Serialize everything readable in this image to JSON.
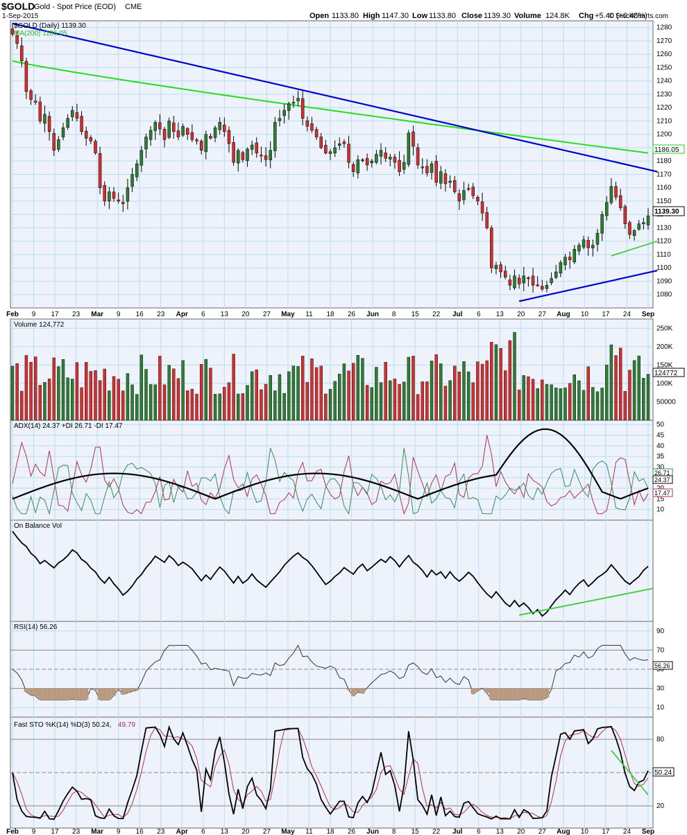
{
  "header": {
    "symbol": "$GOLD",
    "name": "Gold - Spot Price (EOD)",
    "exchange": "CME",
    "date": "1-Sep-2015",
    "open_label": "Open",
    "open": "1133.80",
    "high_label": "High",
    "high": "1147.30",
    "low_label": "Low",
    "low": "1133.80",
    "close_label": "Close",
    "close": "1139.30",
    "volume_label": "Volume",
    "volume": "124.8K",
    "chg_label": "Chg",
    "chg": "+5.40 (+0.48%)",
    "watermark": "© StockCharts.com"
  },
  "colors": {
    "up": "#2e7d32",
    "down": "#d32f2f",
    "ma200": "#22dd22",
    "trendline": "#0000cc",
    "support_green": "#44cc44",
    "plus_di": "#3a8a5a",
    "minus_di": "#b03050",
    "panel_bg": "#eef2fa",
    "grid": "#b8dcf0"
  },
  "chart_data": [
    {
      "type": "candlestick",
      "panel": "price",
      "title": "$GOLD (Daily) 1139.30",
      "legend": [
        {
          "name": "MA(200) 1186.05",
          "color": "#22dd22"
        }
      ],
      "ylim": [
        1070,
        1285
      ],
      "yticks": [
        1080,
        1090,
        1100,
        1110,
        1120,
        1130,
        1140,
        1150,
        1160,
        1170,
        1180,
        1190,
        1200,
        1210,
        1220,
        1230,
        1240,
        1250,
        1260,
        1270,
        1280
      ],
      "last_price_label": "1139.30",
      "ma_label": "1186.05",
      "x_labels": [
        "Feb",
        "9",
        "17",
        "23",
        "Mar",
        "9",
        "16",
        "23",
        "Apr",
        "6",
        "13",
        "20",
        "27",
        "May",
        "11",
        "18",
        "26",
        "Jun",
        "8",
        "15",
        "22",
        "Jul",
        "6",
        "13",
        "20",
        "27",
        "Aug",
        "10",
        "17",
        "24",
        "Sep"
      ],
      "bold_labels": [
        "Feb",
        "Mar",
        "Apr",
        "May",
        "Jun",
        "Jul",
        "Aug",
        "Sep"
      ],
      "close_series": [
        1275,
        1268,
        1255,
        1232,
        1226,
        1224,
        1210,
        1215,
        1202,
        1188,
        1196,
        1205,
        1212,
        1218,
        1212,
        1202,
        1197,
        1195,
        1186,
        1160,
        1150,
        1157,
        1152,
        1150,
        1148,
        1160,
        1170,
        1178,
        1188,
        1198,
        1203,
        1209,
        1204,
        1196,
        1210,
        1202,
        1198,
        1206,
        1200,
        1196,
        1195,
        1188,
        1200,
        1197,
        1205,
        1209,
        1202,
        1193,
        1179,
        1188,
        1181,
        1189,
        1192,
        1186,
        1184,
        1181,
        1188,
        1209,
        1212,
        1218,
        1223,
        1224,
        1227,
        1212,
        1206,
        1203,
        1198,
        1190,
        1186,
        1187,
        1190,
        1193,
        1193,
        1179,
        1172,
        1181,
        1181,
        1177,
        1180,
        1185,
        1188,
        1182,
        1183,
        1179,
        1172,
        1179,
        1201,
        1191,
        1177,
        1175,
        1171,
        1178,
        1164,
        1172,
        1163,
        1165,
        1157,
        1150,
        1158,
        1159,
        1154,
        1150,
        1141,
        1130,
        1100,
        1102,
        1097,
        1093,
        1087,
        1094,
        1088,
        1094,
        1092,
        1087,
        1087,
        1084,
        1087,
        1092,
        1097,
        1104,
        1108,
        1106,
        1114,
        1117,
        1121,
        1115,
        1117,
        1126,
        1140,
        1149,
        1161,
        1153,
        1145,
        1133,
        1125,
        1128,
        1133,
        1134,
        1139
      ],
      "trendlines": [
        {
          "name": "upper-resistance",
          "color": "#0000cc",
          "points": [
            [
              0,
              1283
            ],
            [
              140,
              1172
            ]
          ]
        },
        {
          "name": "lower-support",
          "color": "#0000cc",
          "points": [
            [
              110,
              1075
            ],
            [
              140,
              1098
            ]
          ]
        },
        {
          "name": "green-support",
          "color": "#44cc44",
          "points": [
            [
              130,
              1109
            ],
            [
              140,
              1120
            ]
          ]
        }
      ]
    },
    {
      "type": "bar",
      "panel": "volume",
      "title": "Volume 124,772",
      "ylim": [
        0,
        275000
      ],
      "yticks": [
        50000,
        100000,
        150000,
        200000,
        250000
      ],
      "ytick_labels": [
        "50000",
        "100K",
        "150K",
        "200K",
        "250K"
      ],
      "last_label": "124772"
    },
    {
      "type": "line",
      "panel": "adx",
      "title": "ADX(14) 24.37 +DI 26.71 -DI 17.47",
      "ylim": [
        5,
        52
      ],
      "yticks": [
        10,
        15,
        20,
        25,
        30,
        35,
        40,
        45,
        50
      ],
      "series": [
        {
          "name": "ADX(14)",
          "last": "24.37",
          "color": "#000000"
        },
        {
          "name": "+DI",
          "last": "26.71",
          "color": "#3a8a5a"
        },
        {
          "name": "-DI",
          "last": "17.47",
          "color": "#b03050"
        }
      ]
    },
    {
      "type": "line",
      "panel": "obv",
      "title": "On Balance Vol"
    },
    {
      "type": "line",
      "panel": "rsi",
      "title": "RSI(14) 56.26",
      "ylim": [
        0,
        100
      ],
      "yticks": [
        10,
        30,
        50,
        70,
        90
      ],
      "last_label": "56.26"
    },
    {
      "type": "line",
      "panel": "stochastic",
      "title": "Fast STO %K(14) %D(3) 50.24, 49.79",
      "title_k_part": "Fast STO %K(14) %D(3) 50.24,",
      "title_d_part": "49.79",
      "ylim": [
        0,
        100
      ],
      "yticks": [
        20,
        50,
        80
      ],
      "last_label": "50.24"
    }
  ]
}
